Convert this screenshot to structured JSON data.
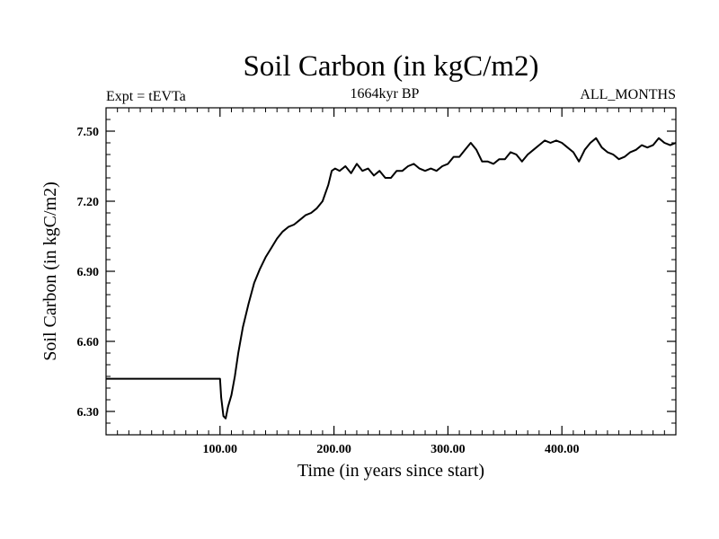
{
  "chart_data": {
    "type": "line",
    "title": "Soil Carbon (in kgC/m2)",
    "subtitle_left": "Expt = tEVTa",
    "subtitle_center": "1664kyr BP",
    "subtitle_right": "ALL_MONTHS",
    "xlabel": "Time (in years since start)",
    "ylabel": "Soil Carbon (in kgC/m2)",
    "xlim": [
      0,
      500
    ],
    "ylim": [
      6.2,
      7.6
    ],
    "x_ticks": [
      {
        "value": 100,
        "label": "100.00"
      },
      {
        "value": 200,
        "label": "200.00"
      },
      {
        "value": 300,
        "label": "300.00"
      },
      {
        "value": 400,
        "label": "400.00"
      }
    ],
    "y_ticks": [
      {
        "value": 6.3,
        "label": "6.30"
      },
      {
        "value": 6.6,
        "label": "6.60"
      },
      {
        "value": 6.9,
        "label": "6.90"
      },
      {
        "value": 7.2,
        "label": "7.20"
      },
      {
        "value": 7.5,
        "label": "7.50"
      }
    ],
    "series": [
      {
        "name": "Soil Carbon",
        "x": [
          0,
          100,
          101,
          103,
          105,
          107,
          110,
          113,
          116,
          120,
          125,
          130,
          135,
          140,
          145,
          150,
          155,
          160,
          165,
          170,
          175,
          180,
          185,
          190,
          195,
          198,
          201,
          205,
          210,
          215,
          220,
          225,
          230,
          235,
          240,
          245,
          250,
          255,
          260,
          265,
          270,
          275,
          280,
          285,
          290,
          295,
          300,
          305,
          310,
          315,
          320,
          325,
          330,
          335,
          340,
          345,
          350,
          355,
          360,
          365,
          370,
          375,
          380,
          385,
          390,
          395,
          400,
          405,
          410,
          415,
          420,
          425,
          430,
          435,
          440,
          445,
          450,
          455,
          460,
          465,
          470,
          475,
          480,
          485,
          490,
          495,
          500
        ],
        "values": [
          6.44,
          6.44,
          6.36,
          6.28,
          6.27,
          6.32,
          6.37,
          6.45,
          6.55,
          6.66,
          6.76,
          6.85,
          6.91,
          6.96,
          7.0,
          7.04,
          7.07,
          7.09,
          7.1,
          7.12,
          7.14,
          7.15,
          7.17,
          7.2,
          7.27,
          7.33,
          7.34,
          7.33,
          7.35,
          7.32,
          7.36,
          7.33,
          7.34,
          7.31,
          7.33,
          7.3,
          7.3,
          7.33,
          7.33,
          7.35,
          7.36,
          7.34,
          7.33,
          7.34,
          7.33,
          7.35,
          7.36,
          7.39,
          7.39,
          7.42,
          7.45,
          7.42,
          7.37,
          7.37,
          7.36,
          7.38,
          7.38,
          7.41,
          7.4,
          7.37,
          7.4,
          7.42,
          7.44,
          7.46,
          7.45,
          7.46,
          7.45,
          7.43,
          7.41,
          7.37,
          7.42,
          7.45,
          7.47,
          7.43,
          7.41,
          7.4,
          7.38,
          7.39,
          7.41,
          7.42,
          7.44,
          7.43,
          7.44,
          7.47,
          7.45,
          7.44,
          7.45
        ]
      }
    ]
  }
}
